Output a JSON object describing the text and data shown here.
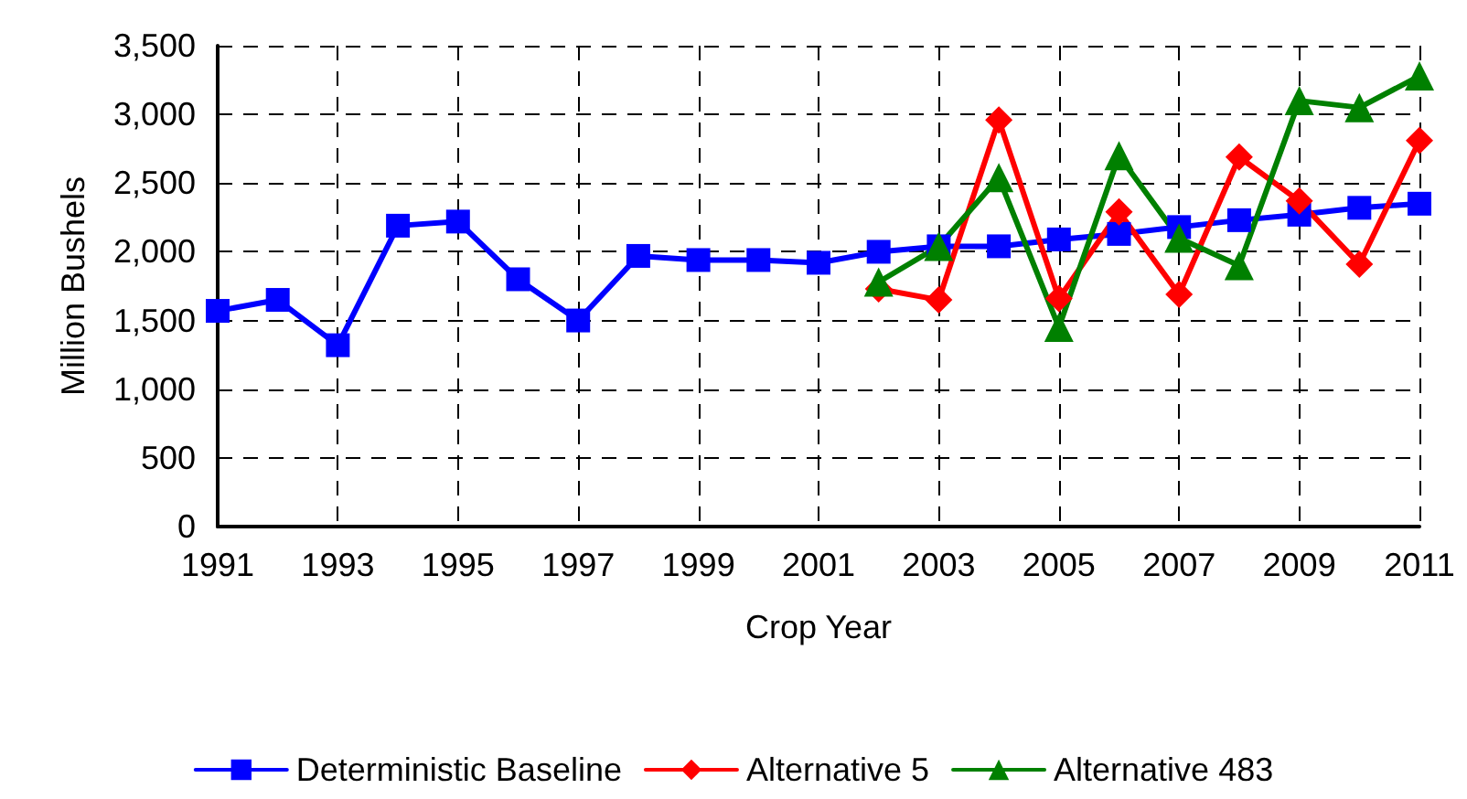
{
  "chart_data": {
    "type": "line",
    "xlabel": "Crop Year",
    "ylabel": "Million Bushels",
    "x": [
      1991,
      1992,
      1993,
      1994,
      1995,
      1996,
      1997,
      1998,
      1999,
      2000,
      2001,
      2002,
      2003,
      2004,
      2005,
      2006,
      2007,
      2008,
      2009,
      2010,
      2011
    ],
    "series": [
      {
        "name": "Deterministic Baseline",
        "color": "#0000ff",
        "marker": "square",
        "values": [
          1570,
          1650,
          1320,
          2190,
          2220,
          1800,
          1500,
          1970,
          1940,
          1940,
          1920,
          2000,
          2040,
          2040,
          2090,
          2130,
          2180,
          2230,
          2270,
          2320,
          2350
        ]
      },
      {
        "name": "Alternative 5",
        "color": "#ff0000",
        "marker": "diamond",
        "values": [
          null,
          null,
          null,
          null,
          null,
          null,
          null,
          null,
          null,
          null,
          null,
          1730,
          1650,
          2960,
          1660,
          2290,
          1690,
          2690,
          2370,
          1910,
          2810
        ]
      },
      {
        "name": "Alternative 483",
        "color": "#008000",
        "marker": "triangle",
        "values": [
          null,
          null,
          null,
          null,
          null,
          null,
          null,
          null,
          null,
          null,
          null,
          1780,
          2040,
          2540,
          1450,
          2700,
          2100,
          1900,
          3100,
          3050,
          3280
        ]
      }
    ],
    "xlim": [
      1991,
      2011
    ],
    "xticks": [
      1991,
      1993,
      1995,
      1997,
      1999,
      2001,
      2003,
      2005,
      2007,
      2009,
      2011
    ],
    "ylim": [
      0,
      3500
    ],
    "yticks": [
      0,
      500,
      {
        "value": 1000,
        "label": "1,000"
      },
      {
        "value": 1500,
        "label": "1,500"
      },
      {
        "value": 2000,
        "label": "2,000"
      },
      {
        "value": 2500,
        "label": "2,500"
      },
      {
        "value": 3000,
        "label": "3,000"
      },
      {
        "value": 3500,
        "label": "3,500"
      }
    ],
    "grid": true,
    "legend": "bottom",
    "line_style": "solid"
  }
}
